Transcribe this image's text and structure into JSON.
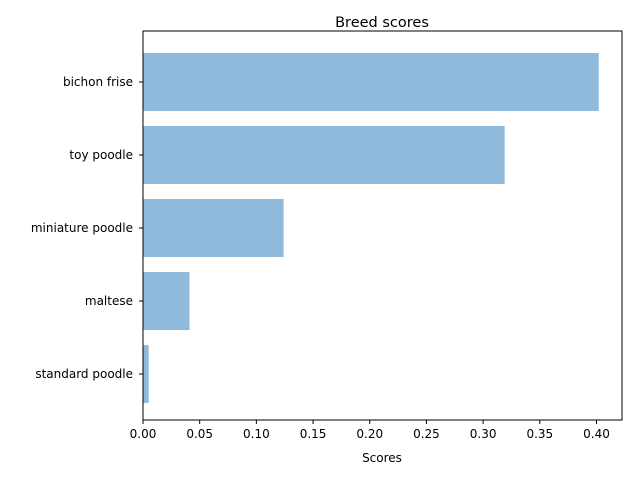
{
  "chart_data": {
    "type": "bar",
    "orientation": "horizontal",
    "title": "Breed scores",
    "xlabel": "Scores",
    "ylabel": "",
    "categories": [
      "bichon frise",
      "toy poodle",
      "miniature poodle",
      "maltese",
      "standard poodle"
    ],
    "values": [
      0.402,
      0.319,
      0.124,
      0.041,
      0.005
    ],
    "xlim": [
      0.0,
      0.4225
    ],
    "xticks": [
      "0.00",
      "0.05",
      "0.10",
      "0.15",
      "0.20",
      "0.25",
      "0.30",
      "0.35",
      "0.40"
    ],
    "bar_color": "#8fbadb",
    "grid": false,
    "legend": "none"
  }
}
